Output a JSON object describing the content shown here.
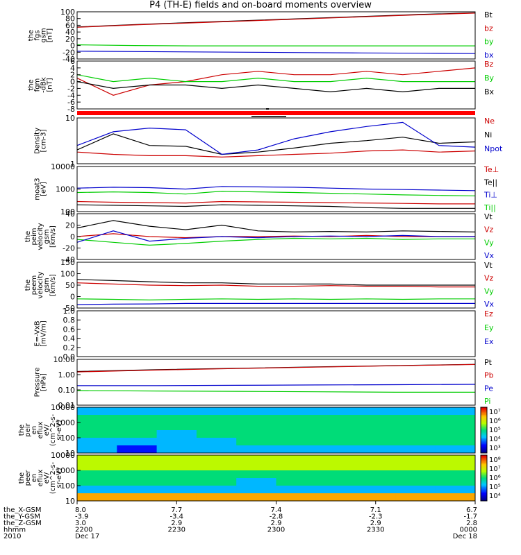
{
  "title": "P4 (TH-E) fields and on-board moments overview",
  "colors": {
    "black": "#000000",
    "red": "#cc0000",
    "green": "#00cc00",
    "blue": "#0000cc"
  },
  "chart_data": [
    {
      "type": "line",
      "ylabel": [
        "the",
        "fgs",
        "gsm",
        "[nT]"
      ],
      "yticks": [
        "100",
        "80",
        "60",
        "40",
        "20",
        "0",
        "-20",
        "-40"
      ],
      "ylim": [
        -40,
        100
      ],
      "yscale": "linear",
      "series": [
        {
          "name": "Bt",
          "color": "#000000",
          "values": [
            55,
            62,
            68,
            74,
            80,
            86,
            92,
            97
          ]
        },
        {
          "name": "bz",
          "color": "#cc0000",
          "values": [
            54,
            61,
            67,
            73,
            79,
            85,
            91,
            96
          ]
        },
        {
          "name": "by",
          "color": "#00cc00",
          "values": [
            2,
            0,
            -1,
            -1,
            -1,
            -1,
            -1,
            -1
          ]
        },
        {
          "name": "bx",
          "color": "#0000cc",
          "values": [
            -17,
            -18,
            -19,
            -20,
            -21,
            -22,
            -23,
            -24
          ]
        }
      ]
    },
    {
      "type": "line",
      "ylabel": [
        "the",
        "fgm",
        "-dBk",
        "[nT]"
      ],
      "yticks": [
        "6",
        "4",
        "2",
        "0",
        "-2",
        "-4",
        "-6",
        "-8"
      ],
      "ylim": [
        -8,
        6
      ],
      "yscale": "linear",
      "series": [
        {
          "name": "Bz",
          "color": "#cc0000",
          "values": [
            1,
            -4,
            -1,
            0,
            2,
            3,
            2,
            2,
            3,
            2,
            3,
            4
          ]
        },
        {
          "name": "By",
          "color": "#00cc00",
          "values": [
            2,
            0,
            1,
            0,
            0,
            1,
            0,
            0,
            1,
            0,
            0,
            0
          ]
        },
        {
          "name": "Bx",
          "color": "#000000",
          "values": [
            0,
            -2,
            -1,
            -1,
            -2,
            -1,
            -2,
            -3,
            -2,
            -3,
            -2,
            -2
          ]
        }
      ]
    },
    {
      "type": "line",
      "ylabel": [
        "Density",
        "[cm-3]"
      ],
      "yticks": [
        "10",
        "1"
      ],
      "ylim": [
        1,
        10
      ],
      "yscale": "log",
      "series": [
        {
          "name": "Ne",
          "color": "#cc0000",
          "values": [
            1.8,
            1.6,
            1.5,
            1.5,
            1.4,
            1.5,
            1.6,
            1.7,
            1.9,
            2.0,
            1.8,
            1.9
          ]
        },
        {
          "name": "Ni",
          "color": "#000000",
          "values": [
            2.0,
            4.5,
            2.5,
            2.4,
            1.6,
            1.8,
            2.2,
            2.8,
            3.2,
            3.8,
            2.8,
            3.0
          ]
        },
        {
          "name": "Npot",
          "color": "#0000cc",
          "values": [
            2.5,
            5.0,
            6.0,
            5.5,
            1.6,
            2.0,
            3.5,
            5.0,
            6.5,
            8.0,
            2.5,
            2.3
          ]
        }
      ]
    },
    {
      "type": "line",
      "ylabel": [
        "moat3",
        "[eV]"
      ],
      "yticks": [
        "10000",
        "1000",
        "100"
      ],
      "ylim": [
        100,
        10000
      ],
      "yscale": "log",
      "series": [
        {
          "name": "Te⊥",
          "color": "#cc0000",
          "values": [
            280,
            260,
            250,
            240,
            280,
            270,
            260,
            250,
            240,
            230,
            220,
            220
          ]
        },
        {
          "name": "Te||",
          "color": "#000000",
          "values": [
            200,
            190,
            180,
            170,
            200,
            190,
            180,
            170,
            150,
            140,
            140,
            140
          ]
        },
        {
          "name": "Ti⊥",
          "color": "#0000cc",
          "values": [
            1100,
            1200,
            1150,
            1000,
            1300,
            1250,
            1200,
            1100,
            1000,
            950,
            900,
            850
          ]
        },
        {
          "name": "Ti||",
          "color": "#00cc00",
          "values": [
            700,
            750,
            700,
            600,
            800,
            750,
            700,
            650,
            600,
            550,
            520,
            500
          ]
        }
      ]
    },
    {
      "type": "line",
      "ylabel": [
        "the",
        "peim",
        "velocity",
        "gsm",
        "[km/s]"
      ],
      "yticks": [
        "40",
        "20",
        "0",
        "-20",
        "-40"
      ],
      "ylim": [
        -40,
        40
      ],
      "yscale": "linear",
      "series": [
        {
          "name": "Vt",
          "color": "#000000",
          "values": [
            15,
            28,
            18,
            12,
            20,
            10,
            8,
            9,
            8,
            10,
            9,
            8
          ]
        },
        {
          "name": "Vz",
          "color": "#cc0000",
          "values": [
            0,
            5,
            0,
            -2,
            0,
            0,
            1,
            0,
            2,
            0,
            0,
            0
          ]
        },
        {
          "name": "Vy",
          "color": "#00cc00",
          "values": [
            -5,
            -10,
            -15,
            -12,
            -8,
            -5,
            -3,
            -4,
            -3,
            -5,
            -4,
            -4
          ]
        },
        {
          "name": "Vx",
          "color": "#0000cc",
          "values": [
            -10,
            10,
            -8,
            -3,
            0,
            -2,
            0,
            1,
            0,
            2,
            0,
            0
          ]
        }
      ]
    },
    {
      "type": "line",
      "ylabel": [
        "the",
        "peem",
        "velocity",
        "gsm",
        "[km/s]"
      ],
      "yticks": [
        "150",
        "100",
        "50",
        "0",
        "-50"
      ],
      "ylim": [
        -50,
        150
      ],
      "yscale": "linear",
      "series": [
        {
          "name": "Vt",
          "color": "#000000",
          "values": [
            75,
            70,
            65,
            60,
            60,
            55,
            55,
            55,
            50,
            50,
            50,
            50
          ]
        },
        {
          "name": "Vz",
          "color": "#cc0000",
          "values": [
            60,
            55,
            50,
            48,
            50,
            45,
            45,
            48,
            45,
            45,
            42,
            42
          ]
        },
        {
          "name": "Vy",
          "color": "#00cc00",
          "values": [
            -10,
            -12,
            -15,
            -12,
            -10,
            -12,
            -10,
            -12,
            -10,
            -12,
            -10,
            -10
          ]
        },
        {
          "name": "Vx",
          "color": "#0000cc",
          "values": [
            -35,
            -33,
            -32,
            -30,
            -30,
            -30,
            -30,
            -30,
            -30,
            -30,
            -30,
            -30
          ]
        }
      ]
    },
    {
      "type": "line",
      "ylabel": [
        "E=-VxB",
        "[mV/m]"
      ],
      "yticks": [
        "1.0",
        "0.8",
        "0.6",
        "0.4",
        "0.2",
        "0.0"
      ],
      "ylim": [
        0,
        1
      ],
      "yscale": "linear",
      "series": [
        {
          "name": "Ez",
          "color": "#cc0000",
          "values": []
        },
        {
          "name": "Ey",
          "color": "#00cc00",
          "values": []
        },
        {
          "name": "Ex",
          "color": "#0000cc",
          "values": []
        }
      ]
    },
    {
      "type": "line",
      "ylabel": [
        "Pressure",
        "[nPa]"
      ],
      "yticks": [
        "10.00",
        "1.00",
        "0.10",
        "0.01"
      ],
      "ylim": [
        0.01,
        10
      ],
      "yscale": "log",
      "series": [
        {
          "name": "Pt",
          "color": "#000000",
          "values": [
            1.6,
            2.1,
            2.6,
            3.2,
            3.9,
            4.7
          ]
        },
        {
          "name": "Pb",
          "color": "#cc0000",
          "values": [
            1.5,
            2.0,
            2.5,
            3.1,
            3.8,
            4.6
          ]
        },
        {
          "name": "Pe",
          "color": "#0000cc",
          "values": [
            0.19,
            0.19,
            0.2,
            0.21,
            0.22,
            0.23
          ]
        },
        {
          "name": "Pi",
          "color": "#00cc00",
          "values": [
            0.09,
            0.085,
            0.08,
            0.075,
            0.07,
            0.07
          ]
        }
      ]
    },
    {
      "type": "heatmap",
      "ylabel": [
        "the",
        "peir",
        "en",
        "eflux",
        "eV/",
        "(cm^2-s-",
        "sr-eV)"
      ],
      "yticks": [
        "10000",
        "1000",
        "100",
        "10"
      ],
      "ylim": [
        10,
        20000
      ],
      "yscale": "log",
      "colorbar_labels": [
        "10⁷",
        "10⁶",
        "10⁵",
        "10⁴",
        "10³"
      ],
      "matrix": [
        [
          4,
          4,
          4,
          4,
          4,
          4,
          4,
          4,
          4,
          4
        ],
        [
          5,
          5,
          5,
          5,
          5,
          5,
          5,
          5,
          5,
          5
        ],
        [
          5,
          5,
          5,
          5,
          5,
          5,
          5,
          5,
          5,
          5
        ],
        [
          5,
          5,
          4,
          5,
          5,
          5,
          5,
          5,
          5,
          5
        ],
        [
          4,
          4,
          4,
          4,
          5,
          5,
          5,
          5,
          5,
          5
        ],
        [
          4,
          3,
          4,
          4,
          4,
          4,
          4,
          4,
          4,
          4
        ]
      ]
    },
    {
      "type": "heatmap",
      "ylabel": [
        "the",
        "peer",
        "en",
        "eflux",
        "eV/",
        "(cm^2-s-",
        "sr-eV)"
      ],
      "yticks": [
        "10000",
        "1000",
        "100",
        "10"
      ],
      "ylim": [
        6,
        20000
      ],
      "yscale": "log",
      "colorbar_labels": [
        "10⁸",
        "10⁷",
        "10⁶",
        "10⁵",
        "10⁴"
      ],
      "matrix": [
        [
          6,
          6,
          6,
          6,
          6,
          6,
          6,
          6,
          6,
          6
        ],
        [
          6,
          6,
          6,
          6,
          6,
          6,
          6,
          6,
          6,
          6
        ],
        [
          5,
          5,
          5,
          5,
          5,
          5,
          5,
          5,
          5,
          5
        ],
        [
          5,
          5,
          5,
          5,
          4,
          5,
          5,
          5,
          5,
          5
        ],
        [
          4,
          4,
          4,
          4,
          4,
          4,
          4,
          4,
          4,
          4
        ],
        [
          7,
          7,
          7,
          7,
          7,
          7,
          7,
          7,
          7,
          7
        ]
      ]
    }
  ],
  "time_axis": {
    "row_labels": [
      "the_X-GSM",
      "the_Y-GSM",
      "the_Z-GSM",
      "hhmm",
      "2010"
    ],
    "columns": [
      {
        "values": [
          "8.0",
          "-3.9",
          "3.0",
          "2200",
          "Dec 17"
        ]
      },
      {
        "values": [
          "7.7",
          "-3.4",
          "2.9",
          "2230",
          ""
        ]
      },
      {
        "values": [
          "7.4",
          "-2.8",
          "2.9",
          "2300",
          ""
        ]
      },
      {
        "values": [
          "7.1",
          "-2.3",
          "2.9",
          "2330",
          ""
        ]
      },
      {
        "values": [
          "6.7",
          "-1.7",
          "2.8",
          "0000",
          "Dec 18"
        ]
      }
    ]
  }
}
